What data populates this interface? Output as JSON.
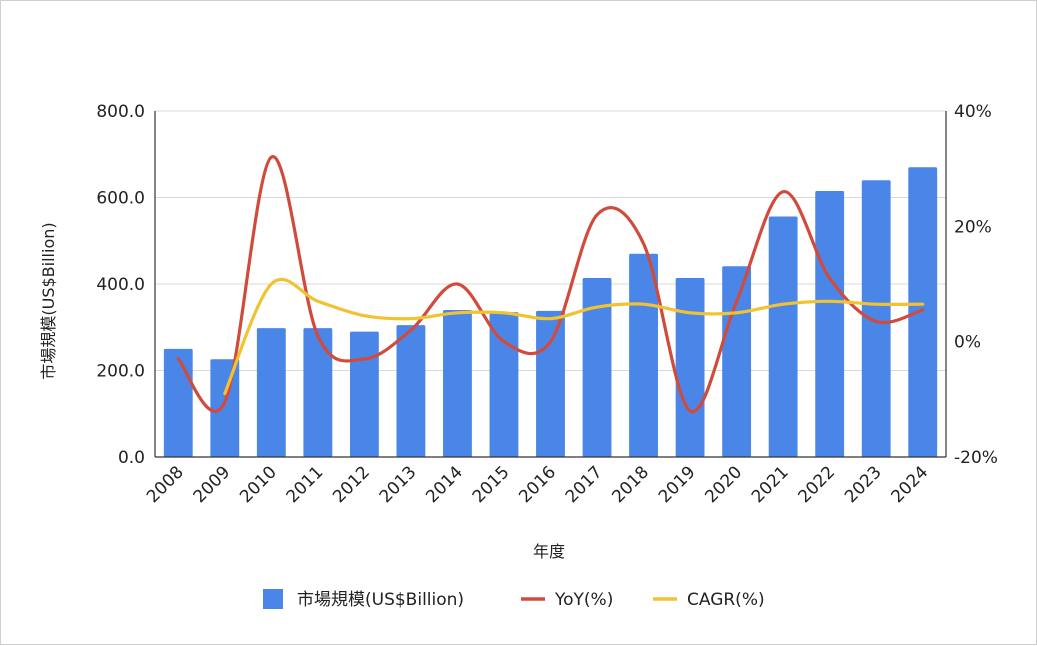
{
  "chart_data": {
    "type": "bar",
    "categories": [
      "2008",
      "2009",
      "2010",
      "2011",
      "2012",
      "2013",
      "2014",
      "2015",
      "2016",
      "2017",
      "2018",
      "2019",
      "2020",
      "2021",
      "2022",
      "2023",
      "2024"
    ],
    "xlabel": "年度",
    "ylabel": "市場規模(US$Billion)",
    "ylim": [
      0,
      800
    ],
    "y_ticks": [
      "0.0",
      "200.0",
      "400.0",
      "600.0",
      "800.0"
    ],
    "y2lim": [
      -20,
      40
    ],
    "y2_ticks": [
      "-20%",
      "0%",
      "20%",
      "40%"
    ],
    "grid": true,
    "legend_position": "bottom",
    "series": [
      {
        "name": "市場規模(US$Billion)",
        "type": "bar",
        "axis": "left",
        "color": "#4a86e8",
        "values": [
          250,
          226,
          298,
          298,
          290,
          305,
          340,
          335,
          338,
          414,
          470,
          414,
          441,
          556,
          615,
          640,
          670
        ]
      },
      {
        "name": "YoY(%)",
        "type": "line",
        "axis": "right",
        "color": "#d14b3c",
        "values": [
          -3,
          -10.5,
          32,
          1,
          -3,
          2,
          10,
          0,
          0,
          22,
          17,
          -12,
          7,
          26,
          11,
          3.5,
          5.5
        ]
      },
      {
        "name": "CAGR(%)",
        "type": "line",
        "axis": "right",
        "color": "#f1c232",
        "values": [
          null,
          -9,
          10,
          7,
          4.5,
          4,
          5,
          5,
          4,
          6,
          6.5,
          5,
          5,
          6.5,
          7,
          6.5,
          6.5
        ]
      }
    ]
  }
}
